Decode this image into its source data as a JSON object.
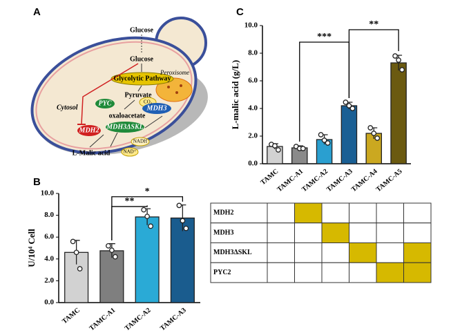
{
  "panels": [
    "A",
    "B",
    "C"
  ],
  "diagram": {
    "glucose_out": "Glucose",
    "glucose": "Glucose",
    "glycolytic": "Glycolytic Pathway",
    "pyruvate": "Pyruvate",
    "pyc": "PYC",
    "co2": "CO₂",
    "oxaloacetate": "oxaloacetate",
    "mdh3skl": "MDH3ΔSKL",
    "nadh": "NADH",
    "nad": "NAD⁺",
    "mdh2": "MDH2",
    "malic": "L-Malic acid",
    "cytosol": "Cytosol",
    "peroxisome": "Peroxisome",
    "mdh3": "MDH3"
  },
  "chart_data": [
    {
      "type": "bar",
      "ylabel": "U/10⁴ Cell",
      "categories": [
        "TAMC",
        "TAMC-A1",
        "TAMC-A2",
        "TAMC-A3"
      ],
      "values": [
        4.6,
        4.75,
        7.85,
        7.75
      ],
      "errors": [
        1.1,
        0.65,
        0.75,
        1.2
      ],
      "points": [
        [
          5.6,
          4.6,
          3.1
        ],
        [
          5.2,
          4.8,
          4.2
        ],
        [
          8.5,
          7.9,
          7.0
        ],
        [
          8.9,
          7.5,
          6.8
        ]
      ],
      "colors": [
        "#d2d2d2",
        "#7f7f7f",
        "#2aaad6",
        "#1a5c8e"
      ],
      "ylim": [
        0,
        10
      ],
      "yticks": [
        {
          "value": 0,
          "label": "0.0"
        },
        {
          "value": 2,
          "label": "2.0"
        },
        {
          "value": 4,
          "label": "4.0"
        },
        {
          "value": 6,
          "label": "6.0"
        },
        {
          "value": 8,
          "label": "8.0"
        },
        {
          "value": 10,
          "label": "10.0"
        }
      ],
      "annotations": [
        {
          "label": "**",
          "between": [
            "TAMC-A1",
            "TAMC-A2"
          ]
        },
        {
          "label": "*",
          "between": [
            "TAMC-A1",
            "TAMC-A3"
          ]
        }
      ]
    },
    {
      "type": "bar",
      "ylabel": "L-malic acid (g/L)",
      "categories": [
        "TAMC",
        "TAMC-A1",
        "TAMC-A2",
        "TAMC-A3",
        "TAMC-A4",
        "TAMC-A5"
      ],
      "values": [
        1.25,
        1.15,
        1.75,
        4.2,
        2.2,
        7.3
      ],
      "errors": [
        0.2,
        0.15,
        0.35,
        0.25,
        0.4,
        0.55
      ],
      "points": [
        [
          1.4,
          1.3,
          1.0
        ],
        [
          1.25,
          1.1,
          1.1
        ],
        [
          2.1,
          1.7,
          1.5
        ],
        [
          4.45,
          4.2,
          4.0
        ],
        [
          2.6,
          2.2,
          1.85
        ],
        [
          7.8,
          7.5,
          6.8
        ]
      ],
      "colors": [
        "#d2d2d2",
        "#8a8a8a",
        "#2a9fd0",
        "#1a5f94",
        "#cba820",
        "#6b5a10"
      ],
      "ylim": [
        0,
        10
      ],
      "yticks": [
        {
          "value": 0,
          "label": "0.0"
        },
        {
          "value": 2,
          "label": "2.0"
        },
        {
          "value": 4,
          "label": "4.0"
        },
        {
          "value": 6,
          "label": "6.0"
        },
        {
          "value": 8,
          "label": "8.0"
        },
        {
          "value": 10,
          "label": "10.0"
        }
      ],
      "annotations": [
        {
          "label": "***",
          "between": [
            "TAMC-A1",
            "TAMC-A3"
          ]
        },
        {
          "label": "**",
          "between": [
            "TAMC-A3",
            "TAMC-A5"
          ]
        }
      ]
    }
  ],
  "gene_table": {
    "fill_color": "#d6b900",
    "rows": [
      {
        "gene": "MDH2",
        "cells": [
          false,
          true,
          false,
          false,
          false,
          false
        ]
      },
      {
        "gene": "MDH3",
        "cells": [
          false,
          false,
          true,
          false,
          false,
          false
        ]
      },
      {
        "gene": "MDH3ΔSKL",
        "cells": [
          false,
          false,
          false,
          true,
          false,
          true
        ]
      },
      {
        "gene": "PYC2",
        "cells": [
          false,
          false,
          false,
          false,
          true,
          true
        ]
      }
    ]
  }
}
